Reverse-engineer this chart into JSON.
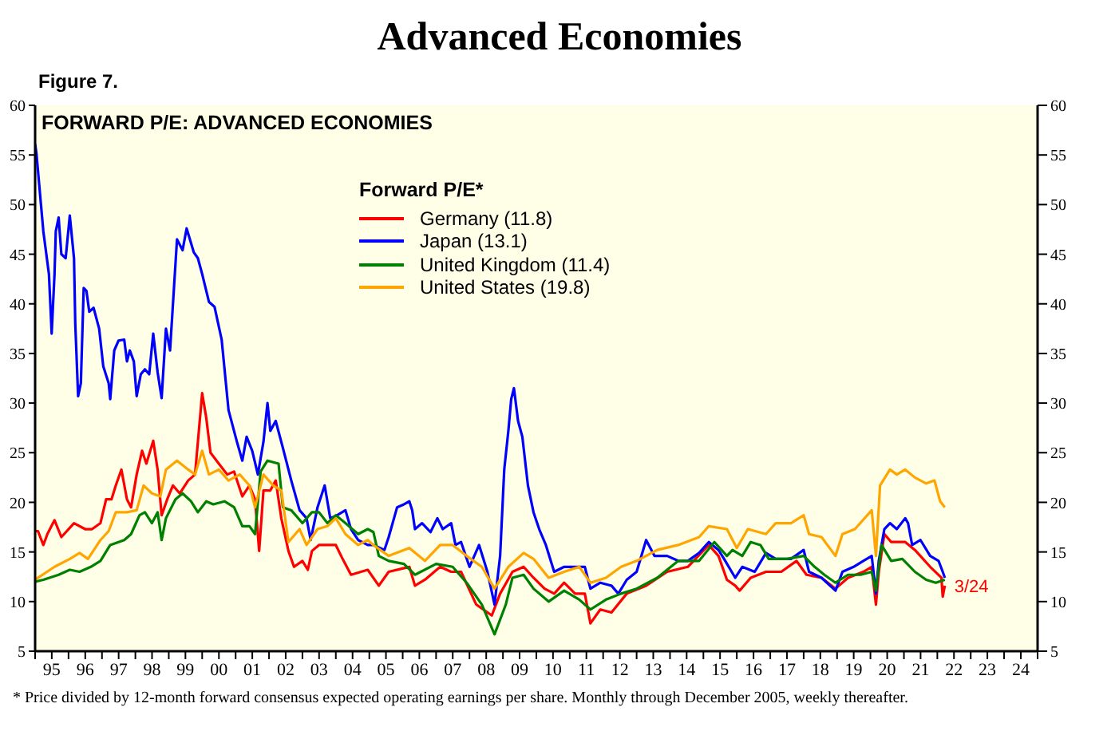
{
  "chart_data": {
    "type": "line",
    "title": "Advanced Economies",
    "subtitle": "FORWARD P/E: ADVANCED ECONOMIES",
    "legend_title": "Forward P/E*",
    "annotations": [
      "Figure 7.",
      "* Price divided by 12-month forward consensus expected operating earnings per share. Monthly through December 2005, weekly thereafter.",
      {
        "text": "3/24",
        "x": "2022-03-24",
        "y": 11.6
      }
    ],
    "xlim": [
      "1995-01-01",
      "2025-01-01"
    ],
    "xticks": [
      {
        "value": "1995-01-01",
        "label": null
      },
      {
        "value": "1995-07-02",
        "label": "95"
      },
      {
        "value": "1996-01-01",
        "label": null
      },
      {
        "value": "1996-07-02",
        "label": "96"
      },
      {
        "value": "1997-01-01",
        "label": null
      },
      {
        "value": "1997-07-02",
        "label": "97"
      },
      {
        "value": "1998-01-01",
        "label": null
      },
      {
        "value": "1998-07-02",
        "label": "98"
      },
      {
        "value": "1999-01-01",
        "label": null
      },
      {
        "value": "1999-07-02",
        "label": "99"
      },
      {
        "value": "2000-01-01",
        "label": null
      },
      {
        "value": "2000-07-02",
        "label": "00"
      },
      {
        "value": "2001-01-01",
        "label": null
      },
      {
        "value": "2001-07-02",
        "label": "01"
      },
      {
        "value": "2002-01-01",
        "label": null
      },
      {
        "value": "2002-07-02",
        "label": "02"
      },
      {
        "value": "2003-01-01",
        "label": null
      },
      {
        "value": "2003-07-02",
        "label": "03"
      },
      {
        "value": "2004-01-01",
        "label": null
      },
      {
        "value": "2004-07-02",
        "label": "04"
      },
      {
        "value": "2005-01-01",
        "label": null
      },
      {
        "value": "2005-07-02",
        "label": "05"
      },
      {
        "value": "2006-01-01",
        "label": null
      },
      {
        "value": "2006-07-02",
        "label": "06"
      },
      {
        "value": "2007-01-01",
        "label": null
      },
      {
        "value": "2007-07-02",
        "label": "07"
      },
      {
        "value": "2008-01-01",
        "label": null
      },
      {
        "value": "2008-07-02",
        "label": "08"
      },
      {
        "value": "2009-01-01",
        "label": null
      },
      {
        "value": "2009-07-02",
        "label": "09"
      },
      {
        "value": "2010-01-01",
        "label": null
      },
      {
        "value": "2010-07-02",
        "label": "10"
      },
      {
        "value": "2011-01-01",
        "label": null
      },
      {
        "value": "2011-07-02",
        "label": "11"
      },
      {
        "value": "2012-01-01",
        "label": null
      },
      {
        "value": "2012-07-02",
        "label": "12"
      },
      {
        "value": "2013-01-01",
        "label": null
      },
      {
        "value": "2013-07-02",
        "label": "13"
      },
      {
        "value": "2014-01-01",
        "label": null
      },
      {
        "value": "2014-07-02",
        "label": "14"
      },
      {
        "value": "2015-01-01",
        "label": null
      },
      {
        "value": "2015-07-02",
        "label": "15"
      },
      {
        "value": "2016-01-01",
        "label": null
      },
      {
        "value": "2016-07-02",
        "label": "16"
      },
      {
        "value": "2017-01-01",
        "label": null
      },
      {
        "value": "2017-07-02",
        "label": "17"
      },
      {
        "value": "2018-01-01",
        "label": null
      },
      {
        "value": "2018-07-02",
        "label": "18"
      },
      {
        "value": "2019-01-01",
        "label": null
      },
      {
        "value": "2019-07-02",
        "label": "19"
      },
      {
        "value": "2020-01-01",
        "label": null
      },
      {
        "value": "2020-07-02",
        "label": "20"
      },
      {
        "value": "2021-01-01",
        "label": null
      },
      {
        "value": "2021-07-02",
        "label": "21"
      },
      {
        "value": "2022-01-01",
        "label": null
      },
      {
        "value": "2022-07-02",
        "label": "22"
      },
      {
        "value": "2023-01-01",
        "label": null
      },
      {
        "value": "2023-07-02",
        "label": "23"
      },
      {
        "value": "2024-01-01",
        "label": null
      },
      {
        "value": "2024-07-02",
        "label": "24"
      },
      {
        "value": "2025-01-01",
        "label": null
      }
    ],
    "ylim": [
      5,
      60
    ],
    "yticks": [
      5,
      10,
      15,
      20,
      25,
      30,
      35,
      40,
      45,
      50,
      55,
      60
    ],
    "y2lim": [
      5,
      60
    ],
    "y2ticks": [
      5,
      10,
      15,
      20,
      25,
      30,
      35,
      40,
      45,
      50,
      55,
      60
    ],
    "grid": false,
    "legend": "top",
    "marker": "none",
    "line_style": "solid",
    "series": [
      {
        "name": "Germany (11.8)",
        "color": "#ff0000",
        "x": [
          "1995-01-01",
          "1995-02-01",
          "1995-04-01",
          "1995-05-15",
          "1995-08-01",
          "1995-10-15",
          "1996-03-01",
          "1996-07-01",
          "1996-09-15",
          "1996-12-15",
          "1997-02-15",
          "1997-04-15",
          "1997-06-01",
          "1997-08-01",
          "1997-10-01",
          "1997-11-15",
          "1998-01-15",
          "1998-03-15",
          "1998-05-01",
          "1998-07-15",
          "1998-09-01",
          "1998-10-15",
          "1998-12-15",
          "1999-02-15",
          "1999-05-01",
          "1999-08-01",
          "1999-10-15",
          "2000-01-01",
          "2000-02-15",
          "2000-04-01",
          "2000-07-01",
          "2000-10-01",
          "2000-12-15",
          "2001-03-15",
          "2001-06-01",
          "2001-08-01",
          "2001-09-15",
          "2001-11-01",
          "2002-01-15",
          "2002-03-15",
          "2002-05-15",
          "2002-08-01",
          "2002-10-01",
          "2003-01-01",
          "2003-03-01",
          "2003-04-15",
          "2003-07-01",
          "2003-10-01",
          "2004-01-01",
          "2004-03-15",
          "2004-06-15",
          "2004-12-15",
          "2005-04-15",
          "2005-08-01",
          "2006-03-15",
          "2006-05-15",
          "2006-09-01",
          "2007-02-15",
          "2007-06-15",
          "2007-10-01",
          "2008-03-15",
          "2008-09-01",
          "2008-12-01",
          "2009-04-15",
          "2009-08-15",
          "2009-12-01",
          "2010-04-01",
          "2010-07-15",
          "2010-11-01",
          "2011-03-01",
          "2011-06-15",
          "2011-08-15",
          "2011-12-01",
          "2012-04-01",
          "2012-09-15",
          "2013-04-15",
          "2013-12-01",
          "2014-07-15",
          "2015-03-01",
          "2015-06-15",
          "2015-09-15",
          "2015-12-15",
          "2016-02-01",
          "2016-06-01",
          "2016-11-15",
          "2017-05-01",
          "2017-10-15",
          "2018-02-01",
          "2018-07-15",
          "2018-12-15",
          "2019-05-01",
          "2019-10-15",
          "2020-01-15",
          "2020-03-01",
          "2020-04-01",
          "2020-06-01",
          "2020-08-15",
          "2021-01-15",
          "2021-05-01",
          "2021-10-15",
          "2022-02-15",
          "2022-03-01",
          "2022-03-24"
        ],
        "values": [
          17.1,
          17.1,
          15.7,
          16.8,
          18.2,
          16.5,
          17.9,
          17.3,
          17.3,
          17.9,
          20.3,
          20.3,
          21.7,
          23.3,
          20.3,
          19.5,
          22.8,
          25.2,
          23.9,
          26.2,
          23.3,
          18.7,
          20.3,
          21.7,
          20.9,
          22.2,
          22.8,
          31.0,
          28.5,
          25.0,
          23.9,
          22.8,
          23.1,
          20.6,
          21.7,
          20.3,
          15.1,
          21.2,
          21.2,
          22.2,
          18.4,
          15.1,
          13.5,
          14.1,
          13.2,
          15.1,
          15.7,
          15.7,
          15.7,
          14.3,
          12.7,
          13.2,
          11.6,
          13.0,
          13.5,
          11.6,
          12.2,
          13.5,
          13.0,
          13.0,
          9.7,
          8.6,
          10.8,
          13.0,
          13.5,
          12.4,
          11.3,
          10.8,
          11.9,
          10.8,
          10.8,
          7.8,
          9.2,
          8.9,
          10.8,
          11.6,
          13.0,
          13.5,
          15.7,
          14.6,
          12.2,
          11.6,
          11.1,
          12.4,
          13.0,
          13.0,
          14.1,
          12.7,
          12.4,
          11.3,
          12.4,
          13.0,
          13.5,
          9.7,
          13.0,
          16.8,
          16.0,
          16.0,
          15.2,
          13.5,
          12.4,
          10.5,
          11.6
        ]
      },
      {
        "name": "Japan (13.1)",
        "color": "#0000ff",
        "x": [
          "1995-01-01",
          "1995-01-15",
          "1995-04-01",
          "1995-06-01",
          "1995-07-01",
          "1995-08-01",
          "1995-08-15",
          "1995-09-15",
          "1995-10-15",
          "1995-12-01",
          "1996-01-15",
          "1996-03-01",
          "1996-03-15",
          "1996-04-15",
          "1996-05-15",
          "1996-06-15",
          "1996-07-15",
          "1996-08-15",
          "1996-10-01",
          "1996-12-01",
          "1997-01-15",
          "1997-03-15",
          "1997-04-01",
          "1997-05-15",
          "1997-07-01",
          "1997-09-01",
          "1997-10-01",
          "1997-11-01",
          "1997-12-15",
          "1998-01-15",
          "1998-03-01",
          "1998-04-15",
          "1998-06-01",
          "1998-07-15",
          "1998-09-01",
          "1998-10-15",
          "1998-12-01",
          "1999-01-15",
          "1999-04-01",
          "1999-06-01",
          "1999-07-15",
          "1999-10-01",
          "1999-11-15",
          "2000-01-01",
          "2000-03-15",
          "2000-05-15",
          "2000-08-01",
          "2000-10-15",
          "2001-01-15",
          "2001-03-15",
          "2001-05-01",
          "2001-07-01",
          "2001-09-01",
          "2001-11-01",
          "2001-12-15",
          "2002-01-15",
          "2002-03-15",
          "2002-06-01",
          "2002-09-01",
          "2002-12-01",
          "2003-02-15",
          "2003-04-01",
          "2003-06-15",
          "2003-09-01",
          "2003-11-01",
          "2004-01-15",
          "2004-04-15",
          "2004-06-15",
          "2004-09-01",
          "2004-12-15",
          "2005-02-15",
          "2005-06-15",
          "2005-08-01",
          "2005-11-01",
          "2006-01-15",
          "2006-03-15",
          "2006-04-15",
          "2006-05-15",
          "2006-08-01",
          "2006-11-01",
          "2007-01-15",
          "2007-03-15",
          "2007-06-15",
          "2007-08-01",
          "2007-10-01",
          "2008-01-01",
          "2008-04-15",
          "2008-07-15",
          "2008-10-01",
          "2008-12-01",
          "2009-01-15",
          "2009-03-01",
          "2009-04-01",
          "2009-05-01",
          "2009-06-15",
          "2009-08-01",
          "2009-10-01",
          "2009-12-01",
          "2010-02-01",
          "2010-04-15",
          "2010-07-15",
          "2010-11-01",
          "2011-03-01",
          "2011-06-15",
          "2011-08-15",
          "2011-12-01",
          "2012-04-01",
          "2012-06-15",
          "2012-09-15",
          "2013-01-01",
          "2013-04-15",
          "2013-07-15",
          "2013-12-01",
          "2014-04-01",
          "2014-07-15",
          "2014-11-15",
          "2015-03-01",
          "2015-06-15",
          "2015-08-15",
          "2015-12-15",
          "2016-03-01",
          "2016-07-15",
          "2016-11-15",
          "2017-03-01",
          "2017-08-15",
          "2018-01-01",
          "2018-03-01",
          "2018-07-15",
          "2018-12-15",
          "2019-03-01",
          "2019-07-01",
          "2019-10-15",
          "2020-01-15",
          "2020-03-01",
          "2020-04-01",
          "2020-06-01",
          "2020-08-01",
          "2020-10-15",
          "2021-01-15",
          "2021-02-15",
          "2021-04-01",
          "2021-07-01",
          "2021-10-15",
          "2022-01-15",
          "2022-03-01",
          "2022-03-24"
        ],
        "values": [
          56.1,
          55.2,
          47.3,
          43.0,
          37.0,
          43.0,
          47.3,
          48.7,
          45.0,
          44.6,
          48.9,
          44.6,
          38.0,
          30.7,
          32.0,
          41.6,
          41.3,
          39.2,
          39.6,
          37.5,
          33.7,
          32.0,
          30.4,
          35.3,
          36.3,
          36.4,
          34.2,
          35.3,
          34.2,
          30.7,
          32.9,
          33.4,
          32.9,
          37.0,
          33.1,
          30.5,
          37.5,
          35.3,
          46.5,
          45.4,
          47.6,
          45.2,
          44.6,
          43.0,
          40.2,
          39.7,
          36.4,
          29.3,
          26.1,
          24.2,
          26.6,
          25.2,
          22.8,
          26.1,
          30.0,
          27.2,
          28.2,
          25.5,
          22.2,
          19.2,
          18.4,
          16.2,
          19.5,
          21.7,
          18.4,
          18.7,
          19.2,
          17.3,
          16.2,
          15.7,
          15.7,
          15.2,
          16.5,
          19.5,
          19.8,
          20.1,
          19.2,
          17.3,
          17.9,
          17.0,
          18.4,
          17.3,
          17.9,
          15.7,
          16.0,
          13.5,
          15.7,
          13.0,
          9.7,
          14.6,
          23.3,
          27.2,
          30.4,
          31.5,
          28.2,
          26.6,
          21.7,
          19.0,
          17.3,
          15.7,
          13.0,
          13.5,
          13.5,
          13.5,
          11.3,
          11.9,
          11.6,
          10.8,
          12.2,
          13.0,
          16.2,
          14.6,
          14.6,
          14.1,
          14.1,
          14.9,
          16.0,
          15.2,
          14.3,
          12.4,
          13.5,
          13.0,
          14.9,
          14.3,
          14.3,
          15.2,
          13.0,
          12.4,
          11.1,
          13.0,
          13.5,
          14.1,
          14.6,
          10.8,
          14.1,
          17.3,
          17.9,
          17.3,
          18.4,
          17.9,
          15.7,
          16.2,
          14.6,
          14.1,
          13.0,
          12.4
        ]
      },
      {
        "name": "United Kingdom (11.4)",
        "color": "#008000",
        "x": [
          "1995-01-01",
          "1995-04-01",
          "1995-09-15",
          "1996-01-15",
          "1996-05-01",
          "1996-09-01",
          "1996-12-15",
          "1997-04-01",
          "1997-09-01",
          "1997-11-15",
          "1998-02-15",
          "1998-04-15",
          "1998-07-01",
          "1998-09-01",
          "1998-10-15",
          "1998-12-01",
          "1999-03-15",
          "1999-06-01",
          "1999-09-01",
          "1999-11-15",
          "2000-02-15",
          "2000-05-01",
          "2000-09-01",
          "2000-12-15",
          "2001-03-15",
          "2001-06-01",
          "2001-08-01",
          "2001-10-01",
          "2001-12-15",
          "2002-04-15",
          "2002-06-01",
          "2002-09-01",
          "2003-01-01",
          "2003-04-15",
          "2003-07-01",
          "2003-10-01",
          "2004-01-01",
          "2004-04-15",
          "2004-09-01",
          "2004-12-15",
          "2005-02-15",
          "2005-04-15",
          "2005-08-01",
          "2006-01-15",
          "2006-05-15",
          "2007-01-01",
          "2007-07-01",
          "2007-12-01",
          "2008-05-15",
          "2008-10-01",
          "2009-02-01",
          "2009-04-15",
          "2009-08-15",
          "2009-12-01",
          "2010-05-15",
          "2010-11-01",
          "2011-04-15",
          "2011-08-15",
          "2012-02-01",
          "2012-07-15",
          "2013-01-01",
          "2013-08-15",
          "2014-04-01",
          "2014-11-15",
          "2015-05-01",
          "2015-09-15",
          "2015-11-15",
          "2016-03-01",
          "2016-06-01",
          "2016-09-15",
          "2016-12-15",
          "2017-07-01",
          "2018-01-01",
          "2018-05-01",
          "2018-08-15",
          "2018-12-15",
          "2019-05-01",
          "2019-09-15",
          "2020-01-15",
          "2020-03-01",
          "2020-05-01",
          "2020-08-15",
          "2020-12-15",
          "2021-05-01",
          "2021-09-01",
          "2021-12-15",
          "2022-03-24"
        ],
        "values": [
          12.0,
          12.2,
          12.7,
          13.2,
          13.0,
          13.5,
          14.1,
          15.7,
          16.2,
          16.8,
          18.7,
          19.0,
          17.9,
          19.0,
          16.2,
          18.4,
          20.3,
          20.9,
          20.1,
          19.0,
          20.1,
          19.8,
          20.1,
          19.5,
          17.6,
          17.6,
          16.8,
          23.1,
          24.2,
          23.9,
          19.5,
          19.2,
          17.9,
          19.0,
          19.0,
          17.9,
          18.7,
          17.9,
          16.8,
          17.3,
          17.0,
          14.6,
          14.1,
          13.8,
          12.7,
          13.8,
          13.5,
          11.9,
          9.7,
          6.7,
          9.7,
          12.4,
          12.7,
          11.3,
          10.0,
          11.1,
          10.2,
          9.2,
          10.2,
          10.8,
          11.3,
          12.4,
          14.1,
          14.1,
          16.0,
          14.6,
          15.2,
          14.6,
          16.0,
          15.7,
          14.3,
          14.3,
          14.6,
          13.5,
          12.7,
          11.9,
          12.7,
          12.7,
          13.0,
          11.1,
          15.7,
          14.1,
          14.3,
          13.0,
          12.2,
          11.9,
          12.2
        ]
      },
      {
        "name": "United States (19.8)",
        "color": "#ffa500",
        "x": [
          "1995-01-01",
          "1995-08-01",
          "1996-01-15",
          "1996-05-01",
          "1996-08-01",
          "1996-12-15",
          "1997-03-15",
          "1997-06-01",
          "1997-10-01",
          "1998-01-15",
          "1998-04-01",
          "1998-07-01",
          "1998-10-01",
          "1998-12-01",
          "1999-04-01",
          "1999-08-01",
          "1999-10-15",
          "2000-01-01",
          "2000-03-15",
          "2000-07-01",
          "2000-10-15",
          "2001-02-15",
          "2001-06-01",
          "2001-08-01",
          "2001-11-01",
          "2002-02-15",
          "2002-05-15",
          "2002-08-01",
          "2002-12-01",
          "2003-02-15",
          "2003-06-15",
          "2003-10-01",
          "2004-01-01",
          "2004-04-15",
          "2004-09-01",
          "2004-12-15",
          "2005-02-15",
          "2005-08-01",
          "2006-03-15",
          "2006-09-01",
          "2007-02-15",
          "2007-07-01",
          "2007-12-01",
          "2008-05-15",
          "2008-10-01",
          "2009-03-01",
          "2009-08-15",
          "2009-12-01",
          "2010-05-15",
          "2010-11-01",
          "2011-04-15",
          "2011-08-15",
          "2012-02-01",
          "2012-07-15",
          "2013-01-01",
          "2013-08-15",
          "2014-04-01",
          "2014-11-15",
          "2015-03-01",
          "2015-09-15",
          "2016-01-01",
          "2016-05-01",
          "2016-11-15",
          "2017-03-01",
          "2017-08-15",
          "2018-01-01",
          "2018-03-01",
          "2018-07-15",
          "2018-12-15",
          "2019-03-01",
          "2019-07-15",
          "2020-01-15",
          "2020-03-01",
          "2020-04-15",
          "2020-08-01",
          "2020-10-15",
          "2021-01-15",
          "2021-05-01",
          "2021-09-01",
          "2021-12-01",
          "2022-02-01",
          "2022-03-24"
        ],
        "values": [
          12.2,
          13.5,
          14.3,
          14.9,
          14.3,
          16.2,
          17.1,
          19.0,
          19.0,
          19.2,
          21.7,
          20.9,
          20.6,
          23.3,
          24.2,
          23.3,
          22.8,
          25.2,
          22.8,
          23.3,
          22.2,
          22.8,
          21.7,
          19.5,
          22.8,
          21.7,
          21.2,
          16.0,
          17.3,
          15.7,
          17.3,
          17.6,
          18.4,
          16.8,
          15.7,
          16.2,
          15.7,
          14.6,
          15.4,
          14.1,
          15.7,
          15.7,
          14.6,
          13.5,
          11.3,
          13.5,
          14.9,
          14.3,
          12.4,
          13.0,
          13.5,
          11.9,
          12.4,
          13.5,
          14.1,
          15.2,
          15.7,
          16.5,
          17.6,
          17.3,
          15.4,
          17.3,
          16.8,
          17.9,
          17.9,
          18.7,
          16.8,
          16.5,
          14.6,
          16.8,
          17.3,
          19.2,
          14.6,
          21.7,
          23.3,
          22.8,
          23.3,
          22.5,
          21.9,
          22.2,
          20.1,
          19.5
        ]
      }
    ]
  }
}
